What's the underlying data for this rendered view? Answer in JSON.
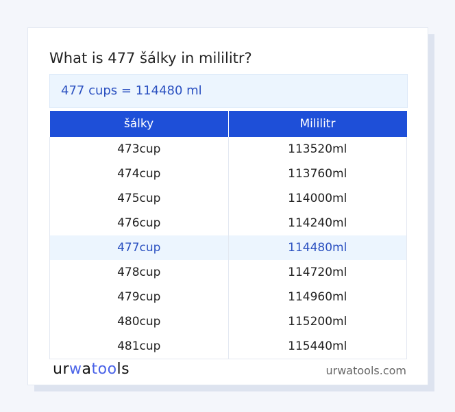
{
  "title": "What is 477 šálky in mililitr?",
  "result": "477 cups = 114480 ml",
  "table": {
    "headers": [
      "šálky",
      "Mililitr"
    ],
    "rows": [
      [
        "473cup",
        "113520ml"
      ],
      [
        "474cup",
        "113760ml"
      ],
      [
        "475cup",
        "114000ml"
      ],
      [
        "476cup",
        "114240ml"
      ],
      [
        "477cup",
        "114480ml"
      ],
      [
        "478cup",
        "114720ml"
      ],
      [
        "479cup",
        "114960ml"
      ],
      [
        "480cup",
        "115200ml"
      ],
      [
        "481cup",
        "115440ml"
      ]
    ],
    "highlight_row": 4
  },
  "footer": {
    "logo": {
      "part1": "ur",
      "part2": "w",
      "part3": "a",
      "part4": "too",
      "part5": "ls"
    },
    "site": "urwatools.com"
  },
  "colors": {
    "accent": "#1e4fd8",
    "highlight_bg": "#ecf5fe",
    "highlight_text": "#2a50c0"
  }
}
